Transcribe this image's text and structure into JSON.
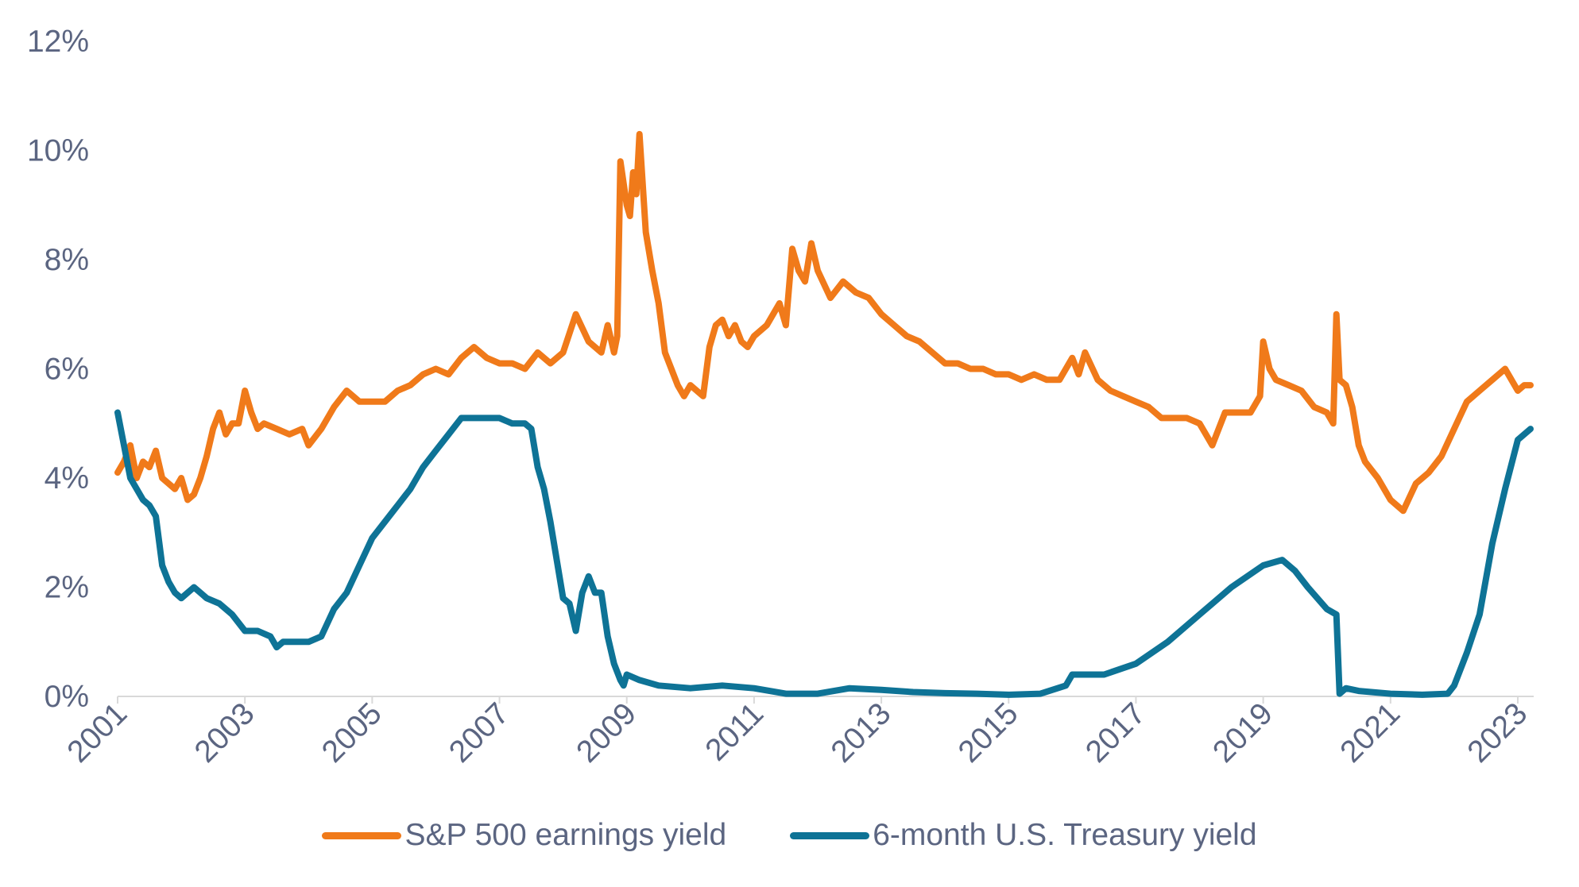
{
  "chart_data": {
    "type": "line",
    "title": "",
    "xlabel": "",
    "ylabel": "",
    "ylim": [
      0,
      12
    ],
    "xlim": [
      2001.0,
      2023.25
    ],
    "y_ticks": [
      "0%",
      "2%",
      "4%",
      "6%",
      "8%",
      "10%",
      "12%"
    ],
    "y_tick_values": [
      0,
      2,
      4,
      6,
      8,
      10,
      12
    ],
    "x_ticks": [
      "2001",
      "2003",
      "2005",
      "2007",
      "2009",
      "2011",
      "2013",
      "2015",
      "2017",
      "2019",
      "2021",
      "2023"
    ],
    "x_tick_values": [
      2001,
      2003,
      2005,
      2007,
      2009,
      2011,
      2013,
      2015,
      2017,
      2019,
      2021,
      2023
    ],
    "grid": false,
    "legend_position": "bottom-center",
    "series": [
      {
        "name": "S&P 500 earnings yield",
        "color": "#f07a1a",
        "x": [
          2001.0,
          2001.1,
          2001.2,
          2001.3,
          2001.4,
          2001.5,
          2001.6,
          2001.7,
          2001.8,
          2001.9,
          2002.0,
          2002.1,
          2002.2,
          2002.3,
          2002.4,
          2002.5,
          2002.6,
          2002.7,
          2002.8,
          2002.9,
          2003.0,
          2003.1,
          2003.2,
          2003.3,
          2003.5,
          2003.7,
          2003.9,
          2004.0,
          2004.2,
          2004.4,
          2004.6,
          2004.8,
          2005.0,
          2005.2,
          2005.4,
          2005.6,
          2005.8,
          2006.0,
          2006.2,
          2006.4,
          2006.6,
          2006.8,
          2007.0,
          2007.2,
          2007.4,
          2007.6,
          2007.8,
          2008.0,
          2008.2,
          2008.4,
          2008.6,
          2008.7,
          2008.8,
          2008.85,
          2008.9,
          2009.0,
          2009.05,
          2009.1,
          2009.15,
          2009.2,
          2009.3,
          2009.4,
          2009.5,
          2009.6,
          2009.7,
          2009.8,
          2009.9,
          2010.0,
          2010.1,
          2010.2,
          2010.3,
          2010.4,
          2010.5,
          2010.6,
          2010.7,
          2010.8,
          2010.9,
          2011.0,
          2011.2,
          2011.4,
          2011.5,
          2011.6,
          2011.7,
          2011.8,
          2011.9,
          2012.0,
          2012.2,
          2012.4,
          2012.6,
          2012.8,
          2013.0,
          2013.2,
          2013.4,
          2013.6,
          2013.8,
          2014.0,
          2014.2,
          2014.4,
          2014.6,
          2014.8,
          2015.0,
          2015.2,
          2015.4,
          2015.6,
          2015.8,
          2016.0,
          2016.1,
          2016.2,
          2016.4,
          2016.6,
          2016.8,
          2017.0,
          2017.2,
          2017.4,
          2017.6,
          2017.8,
          2018.0,
          2018.1,
          2018.2,
          2018.4,
          2018.6,
          2018.8,
          2018.95,
          2019.0,
          2019.1,
          2019.2,
          2019.4,
          2019.6,
          2019.8,
          2020.0,
          2020.1,
          2020.15,
          2020.2,
          2020.3,
          2020.4,
          2020.5,
          2020.6,
          2020.8,
          2021.0,
          2021.2,
          2021.4,
          2021.6,
          2021.8,
          2022.0,
          2022.2,
          2022.4,
          2022.6,
          2022.8,
          2023.0,
          2023.1,
          2023.2
        ],
        "values": [
          4.1,
          4.3,
          4.6,
          4.0,
          4.3,
          4.2,
          4.5,
          4.0,
          3.9,
          3.8,
          4.0,
          3.6,
          3.7,
          4.0,
          4.4,
          4.9,
          5.2,
          4.8,
          5.0,
          5.0,
          5.6,
          5.2,
          4.9,
          5.0,
          4.9,
          4.8,
          4.9,
          4.6,
          4.9,
          5.3,
          5.6,
          5.4,
          5.4,
          5.4,
          5.6,
          5.7,
          5.9,
          6.0,
          5.9,
          6.2,
          6.4,
          6.2,
          6.1,
          6.1,
          6.0,
          6.3,
          6.1,
          6.3,
          7.0,
          6.5,
          6.3,
          6.8,
          6.3,
          6.6,
          9.8,
          9.0,
          8.8,
          9.6,
          9.2,
          10.3,
          8.5,
          7.8,
          7.2,
          6.3,
          6.0,
          5.7,
          5.5,
          5.7,
          5.6,
          5.5,
          6.4,
          6.8,
          6.9,
          6.6,
          6.8,
          6.5,
          6.4,
          6.6,
          6.8,
          7.2,
          6.8,
          8.2,
          7.8,
          7.6,
          8.3,
          7.8,
          7.3,
          7.6,
          7.4,
          7.3,
          7.0,
          6.8,
          6.6,
          6.5,
          6.3,
          6.1,
          6.1,
          6.0,
          6.0,
          5.9,
          5.9,
          5.8,
          5.9,
          5.8,
          5.8,
          6.2,
          5.9,
          6.3,
          5.8,
          5.6,
          5.5,
          5.4,
          5.3,
          5.1,
          5.1,
          5.1,
          5.0,
          4.8,
          4.6,
          5.2,
          5.2,
          5.2,
          5.5,
          6.5,
          6.0,
          5.8,
          5.7,
          5.6,
          5.3,
          5.2,
          5.0,
          7.0,
          5.8,
          5.7,
          5.3,
          4.6,
          4.3,
          4.0,
          3.6,
          3.4,
          3.9,
          4.1,
          4.4,
          4.9,
          5.4,
          5.6,
          5.8,
          6.0,
          5.6,
          5.7,
          5.7
        ]
      },
      {
        "name": "6-month U.S. Treasury yield",
        "color": "#0e7396",
        "x": [
          2001.0,
          2001.1,
          2001.2,
          2001.3,
          2001.4,
          2001.5,
          2001.6,
          2001.7,
          2001.8,
          2001.9,
          2002.0,
          2002.2,
          2002.4,
          2002.6,
          2002.8,
          2003.0,
          2003.2,
          2003.4,
          2003.5,
          2003.6,
          2003.8,
          2004.0,
          2004.2,
          2004.4,
          2004.6,
          2004.8,
          2005.0,
          2005.2,
          2005.4,
          2005.6,
          2005.8,
          2006.0,
          2006.2,
          2006.4,
          2006.6,
          2006.8,
          2007.0,
          2007.2,
          2007.4,
          2007.5,
          2007.6,
          2007.7,
          2007.8,
          2007.9,
          2008.0,
          2008.1,
          2008.2,
          2008.3,
          2008.4,
          2008.5,
          2008.6,
          2008.7,
          2008.8,
          2008.9,
          2008.95,
          2009.0,
          2009.2,
          2009.5,
          2010.0,
          2010.5,
          2011.0,
          2011.5,
          2012.0,
          2012.5,
          2013.0,
          2013.5,
          2014.0,
          2014.5,
          2015.0,
          2015.5,
          2015.9,
          2016.0,
          2016.5,
          2017.0,
          2017.5,
          2018.0,
          2018.5,
          2019.0,
          2019.3,
          2019.5,
          2019.7,
          2020.0,
          2020.15,
          2020.2,
          2020.3,
          2020.5,
          2021.0,
          2021.5,
          2021.9,
          2022.0,
          2022.2,
          2022.4,
          2022.6,
          2022.8,
          2023.0,
          2023.2
        ],
        "values": [
          5.2,
          4.6,
          4.0,
          3.8,
          3.6,
          3.5,
          3.3,
          2.4,
          2.1,
          1.9,
          1.8,
          2.0,
          1.8,
          1.7,
          1.5,
          1.2,
          1.2,
          1.1,
          0.9,
          1.0,
          1.0,
          1.0,
          1.1,
          1.6,
          1.9,
          2.4,
          2.9,
          3.2,
          3.5,
          3.8,
          4.2,
          4.5,
          4.8,
          5.1,
          5.1,
          5.1,
          5.1,
          5.0,
          5.0,
          4.9,
          4.2,
          3.8,
          3.2,
          2.5,
          1.8,
          1.7,
          1.2,
          1.9,
          2.2,
          1.9,
          1.9,
          1.1,
          0.6,
          0.3,
          0.2,
          0.4,
          0.3,
          0.2,
          0.15,
          0.2,
          0.15,
          0.05,
          0.05,
          0.15,
          0.12,
          0.08,
          0.06,
          0.05,
          0.03,
          0.05,
          0.2,
          0.4,
          0.4,
          0.6,
          1.0,
          1.5,
          2.0,
          2.4,
          2.5,
          2.3,
          2.0,
          1.6,
          1.5,
          0.05,
          0.15,
          0.1,
          0.05,
          0.03,
          0.05,
          0.2,
          0.8,
          1.5,
          2.8,
          3.8,
          4.7,
          4.9
        ]
      }
    ]
  }
}
